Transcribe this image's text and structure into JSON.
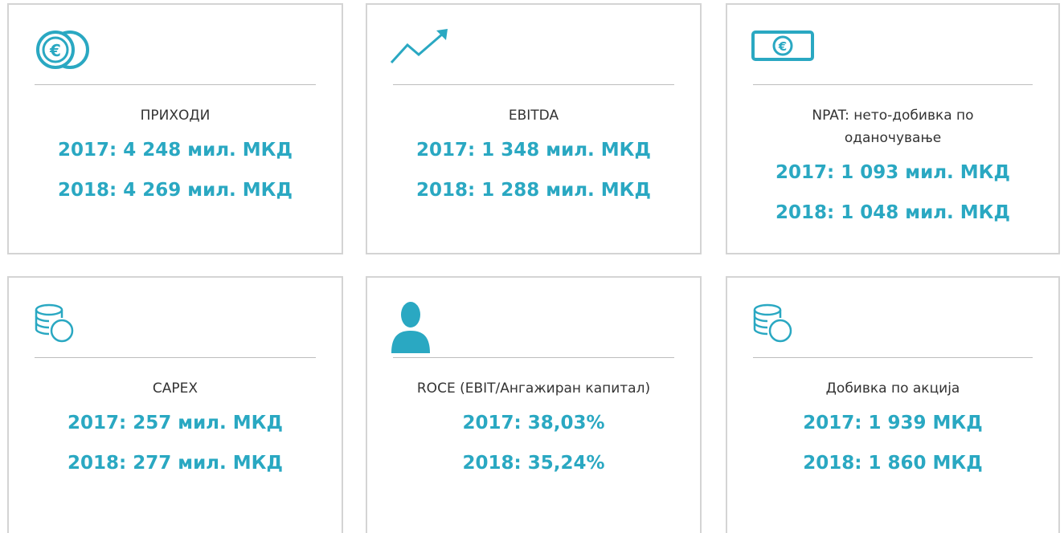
{
  "cards": [
    {
      "title": "ПРИХОДИ",
      "values": [
        "2017: 4 248 мил. МКД",
        "2018: 4 269 мил. МКД"
      ]
    },
    {
      "title": "EBITDA",
      "values": [
        "2017: 1 348 мил. МКД",
        "2018: 1 288 мил. МКД"
      ]
    },
    {
      "title": "NPAT: нето-добивка по оданочување",
      "values": [
        "2017: 1 093 мил. МКД",
        "2018: 1 048 мил. МКД"
      ]
    },
    {
      "title": "CAPEX",
      "values": [
        "2017: 257 мил. МКД",
        "2018: 277 мил. МКД"
      ]
    },
    {
      "title": "ROCE (EBIT/Ангажиран капитал)",
      "values": [
        "2017: 38,03%",
        "2018: 35,24%"
      ]
    },
    {
      "title": "Добивка по акција",
      "values": [
        "2017: 1 939 МКД",
        "2018: 1 860 МКД"
      ]
    }
  ]
}
